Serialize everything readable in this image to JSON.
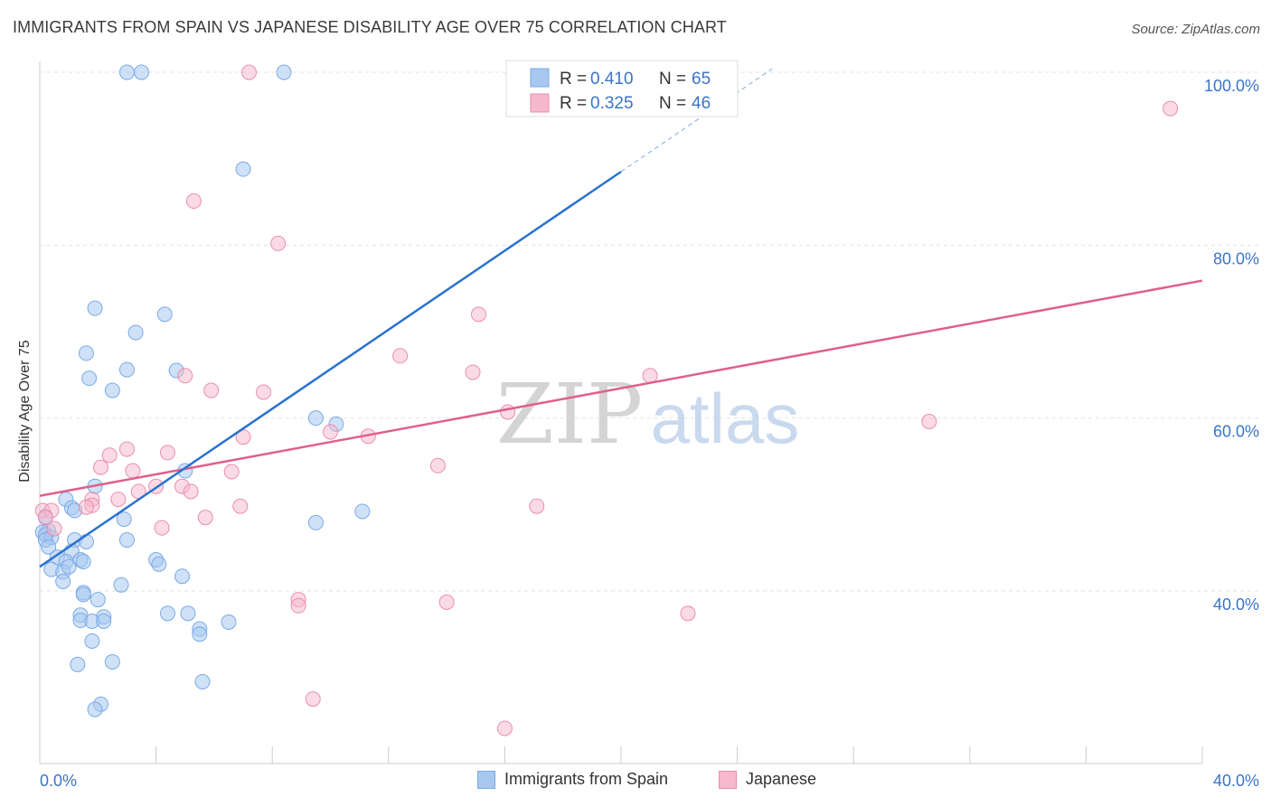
{
  "title": "IMMIGRANTS FROM SPAIN VS JAPANESE DISABILITY AGE OVER 75 CORRELATION CHART",
  "source": "Source: ZipAtlas.com",
  "watermark": {
    "zip": "ZIP",
    "atlas": "atlas"
  },
  "legend": {
    "entries": [
      {
        "r_label": "R =",
        "r_value": "0.410",
        "n_label": "N =",
        "n_value": "65"
      },
      {
        "r_label": "R =",
        "r_value": "0.325",
        "n_label": "N =",
        "n_value": "46"
      }
    ]
  },
  "bottom_legend": [
    "Immigrants from Spain",
    "Japanese"
  ],
  "colors": {
    "blue_fill": "#a8c8f0",
    "blue_stroke": "#7aaae6",
    "blue_line": "#2a72d0",
    "pink_fill": "#f5b8cc",
    "pink_stroke": "#eb8eab",
    "pink_line": "#e0608a",
    "value_text": "#3a74c8",
    "grid": "#e2e2e2"
  },
  "chart_data": {
    "type": "scatter",
    "title": "IMMIGRANTS FROM SPAIN VS JAPANESE DISABILITY AGE OVER 75 CORRELATION CHART",
    "xlabel": "",
    "ylabel": "Disability Age Over 75",
    "xlim": [
      0,
      40
    ],
    "ylim": [
      22,
      102
    ],
    "x_tick_labels": [
      "0.0%",
      "40.0%"
    ],
    "y_ticks": [
      40,
      60,
      80,
      100
    ],
    "y_tick_labels": [
      "40.0%",
      "60.0%",
      "80.0%",
      "100.0%"
    ],
    "grid": true,
    "legend_placement": "top-center",
    "series": [
      {
        "name": "Immigrants from Spain",
        "r": 0.41,
        "n": 65,
        "trend": {
          "x": [
            0.0,
            20.0
          ],
          "y": [
            42.8,
            88.5
          ]
        },
        "trend_dashed": {
          "x": [
            20.0,
            25.2
          ],
          "y": [
            88.5,
            100.4
          ]
        },
        "points": [
          [
            3.0,
            100.0
          ],
          [
            3.5,
            100.0
          ],
          [
            8.4,
            100.0
          ],
          [
            16.3,
            100.0
          ],
          [
            7.0,
            88.8
          ],
          [
            1.9,
            72.7
          ],
          [
            4.3,
            72.0
          ],
          [
            3.3,
            69.9
          ],
          [
            1.6,
            67.5
          ],
          [
            1.7,
            64.6
          ],
          [
            3.0,
            65.6
          ],
          [
            4.7,
            65.5
          ],
          [
            2.5,
            63.2
          ],
          [
            9.5,
            60.0
          ],
          [
            10.2,
            59.3
          ],
          [
            5.0,
            53.9
          ],
          [
            1.9,
            52.1
          ],
          [
            0.9,
            50.6
          ],
          [
            1.1,
            49.6
          ],
          [
            1.2,
            49.3
          ],
          [
            11.1,
            49.2
          ],
          [
            2.9,
            48.3
          ],
          [
            9.5,
            47.9
          ],
          [
            0.2,
            48.6
          ],
          [
            0.3,
            47.0
          ],
          [
            0.1,
            46.8
          ],
          [
            0.2,
            46.5
          ],
          [
            0.4,
            46.2
          ],
          [
            0.2,
            45.9
          ],
          [
            1.2,
            45.9
          ],
          [
            1.6,
            45.7
          ],
          [
            0.3,
            45.1
          ],
          [
            3.0,
            45.9
          ],
          [
            1.1,
            44.6
          ],
          [
            0.6,
            43.9
          ],
          [
            1.4,
            43.6
          ],
          [
            0.9,
            43.4
          ],
          [
            1.5,
            43.4
          ],
          [
            4.0,
            43.6
          ],
          [
            4.1,
            43.1
          ],
          [
            0.4,
            42.5
          ],
          [
            0.8,
            42.2
          ],
          [
            1.0,
            42.8
          ],
          [
            4.9,
            41.7
          ],
          [
            0.8,
            41.1
          ],
          [
            2.8,
            40.7
          ],
          [
            1.5,
            39.8
          ],
          [
            1.5,
            39.6
          ],
          [
            2.0,
            39.0
          ],
          [
            1.4,
            37.2
          ],
          [
            2.2,
            37.0
          ],
          [
            4.4,
            37.4
          ],
          [
            5.1,
            37.4
          ],
          [
            1.4,
            36.6
          ],
          [
            1.8,
            36.5
          ],
          [
            2.2,
            36.5
          ],
          [
            6.5,
            36.4
          ],
          [
            5.5,
            35.6
          ],
          [
            5.5,
            35.0
          ],
          [
            1.8,
            34.2
          ],
          [
            1.3,
            31.5
          ],
          [
            2.5,
            31.8
          ],
          [
            5.6,
            29.5
          ],
          [
            2.1,
            26.9
          ],
          [
            1.9,
            26.3
          ]
        ]
      },
      {
        "name": "Japanese",
        "r": 0.325,
        "n": 46,
        "trend": {
          "x": [
            0.0,
            40.0
          ],
          "y": [
            51.0,
            75.9
          ]
        },
        "points": [
          [
            7.2,
            100.0
          ],
          [
            23.4,
            100.0
          ],
          [
            38.9,
            95.8
          ],
          [
            5.3,
            85.1
          ],
          [
            8.2,
            80.2
          ],
          [
            15.1,
            72.0
          ],
          [
            12.4,
            67.2
          ],
          [
            14.9,
            65.3
          ],
          [
            5.0,
            64.9
          ],
          [
            21.0,
            64.9
          ],
          [
            5.9,
            63.2
          ],
          [
            7.7,
            63.0
          ],
          [
            16.1,
            60.7
          ],
          [
            30.6,
            59.6
          ],
          [
            10.0,
            58.4
          ],
          [
            11.3,
            57.9
          ],
          [
            7.0,
            57.8
          ],
          [
            3.0,
            56.4
          ],
          [
            4.4,
            56.0
          ],
          [
            2.4,
            55.7
          ],
          [
            2.1,
            54.3
          ],
          [
            13.7,
            54.5
          ],
          [
            3.2,
            53.9
          ],
          [
            6.6,
            53.8
          ],
          [
            4.0,
            52.1
          ],
          [
            4.9,
            52.1
          ],
          [
            3.4,
            51.5
          ],
          [
            5.2,
            51.5
          ],
          [
            1.8,
            50.6
          ],
          [
            2.7,
            50.6
          ],
          [
            1.8,
            49.9
          ],
          [
            1.6,
            49.7
          ],
          [
            0.1,
            49.3
          ],
          [
            17.1,
            49.8
          ],
          [
            6.9,
            49.8
          ],
          [
            0.4,
            49.3
          ],
          [
            0.2,
            48.5
          ],
          [
            5.7,
            48.5
          ],
          [
            0.5,
            47.2
          ],
          [
            4.2,
            47.3
          ],
          [
            8.9,
            39.0
          ],
          [
            8.9,
            38.3
          ],
          [
            14.0,
            38.7
          ],
          [
            22.3,
            37.4
          ],
          [
            9.4,
            27.5
          ],
          [
            16.0,
            24.1
          ]
        ]
      }
    ]
  }
}
